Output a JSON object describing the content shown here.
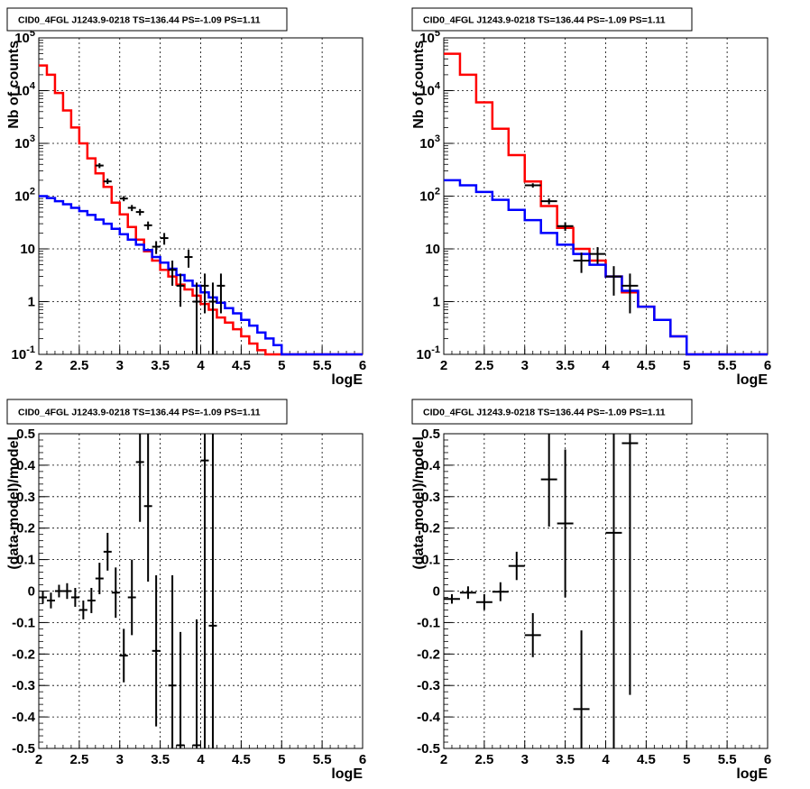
{
  "chart_data": [
    {
      "type": "line",
      "title": "CID0_4FGL J1243.9-0218 TS=136.44 PS=-1.09 PS=1.11",
      "xlabel": "logE",
      "ylabel": "Nb of counts",
      "xlim": [
        2,
        6
      ],
      "ylim": [
        0.1,
        100000
      ],
      "yscale": "log",
      "grid": true,
      "x_ticks": [
        "2",
        "2.5",
        "3",
        "3.5",
        "4",
        "4.5",
        "5",
        "5.5",
        "6"
      ],
      "y_ticks": [
        "10^-1",
        "1",
        "10",
        "10^2",
        "10^3",
        "10^4",
        "10^5"
      ],
      "bin_edges": [
        2,
        2.1,
        2.2,
        2.3,
        2.4,
        2.5,
        2.6,
        2.7,
        2.8,
        2.9,
        3,
        3.1,
        3.2,
        3.3,
        3.4,
        3.5,
        3.6,
        3.7,
        3.8,
        3.9,
        4,
        4.1,
        4.2,
        4.3,
        4.4,
        4.5,
        4.6,
        4.7,
        4.8,
        4.9,
        5,
        5.1,
        5.2,
        5.3,
        5.4,
        5.5,
        5.6,
        5.7,
        5.8,
        5.9,
        6
      ],
      "series": [
        {
          "color": "#ff0000",
          "values": [
            30000,
            20000,
            9000,
            4200,
            2000,
            1000,
            520,
            270,
            150,
            75,
            45,
            26,
            15,
            9,
            6,
            4,
            3,
            2.1,
            1.7,
            1.3,
            0.9,
            0.7,
            0.5,
            0.4,
            0.3,
            0.22,
            0.16,
            0.12,
            0.1,
            0.1,
            0.1,
            0.1,
            0.1,
            0.1,
            0.1,
            0.1,
            0.1,
            0.1,
            0.1,
            0.1
          ]
        },
        {
          "color": "#0000ff",
          "values": [
            100,
            92,
            80,
            70,
            60,
            52,
            44,
            36,
            30,
            24,
            19,
            15,
            12,
            9.5,
            7,
            5.5,
            4.2,
            3.2,
            2.5,
            2,
            1.5,
            1.2,
            0.95,
            0.75,
            0.6,
            0.45,
            0.35,
            0.26,
            0.2,
            0.15,
            0.1,
            0.1,
            0.1,
            0.1,
            0.1,
            0.1,
            0.1,
            0.1,
            0.1,
            0.1
          ]
        }
      ],
      "points": [
        {
          "x": 2.75,
          "y": 380,
          "ylo": 340,
          "yhi": 420
        },
        {
          "x": 2.85,
          "y": 190,
          "ylo": 170,
          "yhi": 215
        },
        {
          "x": 3.05,
          "y": 90,
          "ylo": 80,
          "yhi": 100
        },
        {
          "x": 3.15,
          "y": 60,
          "ylo": 52,
          "yhi": 68
        },
        {
          "x": 3.25,
          "y": 50,
          "ylo": 43,
          "yhi": 57
        },
        {
          "x": 3.35,
          "y": 28,
          "ylo": 23,
          "yhi": 33
        },
        {
          "x": 3.45,
          "y": 11,
          "ylo": 8,
          "yhi": 14
        },
        {
          "x": 3.55,
          "y": 16,
          "ylo": 12,
          "yhi": 20
        },
        {
          "x": 3.65,
          "y": 4,
          "ylo": 2,
          "yhi": 6
        },
        {
          "x": 3.75,
          "y": 2,
          "ylo": 0.8,
          "yhi": 3.4
        },
        {
          "x": 3.85,
          "y": 7,
          "ylo": 4.4,
          "yhi": 9.6
        },
        {
          "x": 3.95,
          "y": 1,
          "ylo": 0.1,
          "yhi": 2.3
        },
        {
          "x": 4.05,
          "y": 2,
          "ylo": 0.6,
          "yhi": 3.4
        },
        {
          "x": 4.15,
          "y": 1,
          "ylo": 0.1,
          "yhi": 2.3
        },
        {
          "x": 4.25,
          "y": 2,
          "ylo": 0.6,
          "yhi": 3.4
        }
      ]
    },
    {
      "type": "line",
      "title": "CID0_4FGL J1243.9-0218 TS=136.44 PS=-1.09 PS=1.11",
      "xlabel": "logE",
      "ylabel": "Nb of counts",
      "xlim": [
        2,
        6
      ],
      "ylim": [
        0.1,
        100000
      ],
      "yscale": "log",
      "grid": true,
      "x_ticks": [
        "2",
        "2.5",
        "3",
        "3.5",
        "4",
        "4.5",
        "5",
        "5.5",
        "6"
      ],
      "y_ticks": [
        "10^-1",
        "1",
        "10",
        "10^2",
        "10^3",
        "10^4",
        "10^5"
      ],
      "bin_edges": [
        2,
        2.2,
        2.4,
        2.6,
        2.8,
        3,
        3.2,
        3.4,
        3.6,
        3.8,
        4,
        4.2,
        4.4,
        4.6,
        4.8,
        5,
        5.2,
        5.4,
        5.6,
        5.8,
        6
      ],
      "series": [
        {
          "color": "#ff0000",
          "values": [
            50000,
            20000,
            6000,
            1900,
            600,
            190,
            65,
            25,
            10,
            6,
            3,
            1.5,
            0.8,
            0.45,
            0.22,
            0.1,
            0.1,
            0.1,
            0.1,
            0.1
          ]
        },
        {
          "color": "#0000ff",
          "values": [
            200,
            160,
            120,
            85,
            55,
            35,
            20,
            12,
            8,
            5,
            3,
            1.6,
            0.8,
            0.45,
            0.22,
            0.1,
            0.1,
            0.1,
            0.1,
            0.1
          ]
        }
      ],
      "points": [
        {
          "x": 3.1,
          "y": 160,
          "ylo": 145,
          "yhi": 175
        },
        {
          "x": 3.3,
          "y": 80,
          "ylo": 70,
          "yhi": 90
        },
        {
          "x": 3.5,
          "y": 27,
          "ylo": 22,
          "yhi": 32
        },
        {
          "x": 3.7,
          "y": 6,
          "ylo": 3.5,
          "yhi": 8.5
        },
        {
          "x": 3.9,
          "y": 8,
          "ylo": 5.2,
          "yhi": 10.8
        },
        {
          "x": 4.1,
          "y": 3,
          "ylo": 1.3,
          "yhi": 4.7
        },
        {
          "x": 4.3,
          "y": 2,
          "ylo": 0.6,
          "yhi": 3.4
        }
      ]
    },
    {
      "type": "scatter",
      "title": "CID0_4FGL J1243.9-0218 TS=136.44 PS=-1.09 PS=1.11",
      "xlabel": "logE",
      "ylabel": "(data-model)/model",
      "xlim": [
        2,
        6
      ],
      "ylim": [
        -0.5,
        0.5
      ],
      "grid": true,
      "x_ticks": [
        "2",
        "2.5",
        "3",
        "3.5",
        "4",
        "4.5",
        "5",
        "5.5",
        "6"
      ],
      "y_ticks": [
        "-0.5",
        "-0.4",
        "-0.3",
        "-0.2",
        "-0.1",
        "0",
        "0.1",
        "0.2",
        "0.3",
        "0.4",
        "0.5"
      ],
      "half_width": 0.05,
      "points": [
        {
          "x": 2.05,
          "y": -0.02,
          "err": 0.02
        },
        {
          "x": 2.15,
          "y": -0.03,
          "err": 0.025
        },
        {
          "x": 2.25,
          "y": 0.0,
          "err": 0.02
        },
        {
          "x": 2.35,
          "y": 0.0,
          "err": 0.025
        },
        {
          "x": 2.45,
          "y": -0.02,
          "err": 0.03
        },
        {
          "x": 2.55,
          "y": -0.06,
          "err": 0.03
        },
        {
          "x": 2.65,
          "y": -0.03,
          "err": 0.04
        },
        {
          "x": 2.75,
          "y": 0.04,
          "err": 0.05
        },
        {
          "x": 2.85,
          "y": 0.125,
          "err": 0.06
        },
        {
          "x": 2.95,
          "y": -0.005,
          "err": 0.08
        },
        {
          "x": 3.05,
          "y": -0.205,
          "err": 0.085
        },
        {
          "x": 3.15,
          "y": -0.02,
          "err": 0.12
        },
        {
          "x": 3.25,
          "y": 0.41,
          "err": 0.19
        },
        {
          "x": 3.35,
          "y": 0.27,
          "err": 0.24
        },
        {
          "x": 3.45,
          "y": -0.19,
          "err": 0.24
        },
        {
          "x": 3.65,
          "y": -0.3,
          "err": 0.35
        },
        {
          "x": 3.75,
          "y": -0.49,
          "err": 0.36
        },
        {
          "x": 3.95,
          "y": -0.49,
          "err": 0.4
        },
        {
          "x": 4.05,
          "y": 0.415,
          "err": 1.0
        },
        {
          "x": 4.15,
          "y": -0.11,
          "err": 1.0
        }
      ]
    },
    {
      "type": "scatter",
      "title": "CID0_4FGL J1243.9-0218 TS=136.44 PS=-1.09 PS=1.11",
      "xlabel": "logE",
      "ylabel": "(data-model)/model",
      "xlim": [
        2,
        6
      ],
      "ylim": [
        -0.5,
        0.5
      ],
      "grid": true,
      "x_ticks": [
        "2",
        "2.5",
        "3",
        "3.5",
        "4",
        "4.5",
        "5",
        "5.5",
        "6"
      ],
      "y_ticks": [
        "-0.5",
        "-0.4",
        "-0.3",
        "-0.2",
        "-0.1",
        "0",
        "0.1",
        "0.2",
        "0.3",
        "0.4",
        "0.5"
      ],
      "half_width": 0.1,
      "points": [
        {
          "x": 2.1,
          "y": -0.025,
          "err": 0.015
        },
        {
          "x": 2.3,
          "y": -0.005,
          "err": 0.02
        },
        {
          "x": 2.5,
          "y": -0.035,
          "err": 0.025
        },
        {
          "x": 2.7,
          "y": -0.002,
          "err": 0.03
        },
        {
          "x": 2.9,
          "y": 0.08,
          "err": 0.045
        },
        {
          "x": 3.1,
          "y": -0.14,
          "err": 0.07
        },
        {
          "x": 3.3,
          "y": 0.355,
          "err": 0.15
        },
        {
          "x": 3.5,
          "y": 0.215,
          "err": 0.235
        },
        {
          "x": 3.7,
          "y": -0.375,
          "err": 0.25
        },
        {
          "x": 4.1,
          "y": 0.185,
          "err": 0.8
        },
        {
          "x": 4.3,
          "y": 0.47,
          "err": 0.8
        }
      ]
    }
  ]
}
